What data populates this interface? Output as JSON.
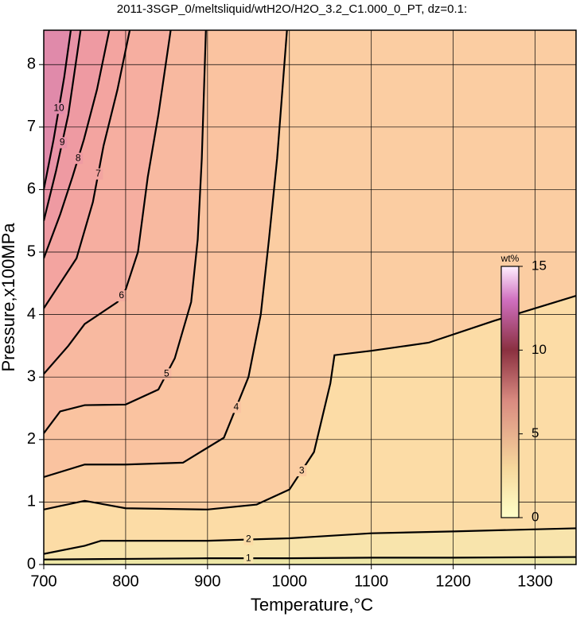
{
  "chart_data": {
    "type": "contour",
    "title": "2011-3SGP_0/meltsliquid/wtH2O/H2O_3.2_C1.000_0_PT, dz=0.1:",
    "x_label": "Temperature,°C",
    "y_label": "Pressure,x100MPa",
    "xlim": [
      700,
      1350
    ],
    "ylim": [
      0,
      8.55
    ],
    "xticks": [
      700,
      800,
      900,
      1000,
      1100,
      1200,
      1300
    ],
    "yticks": [
      0,
      1,
      2,
      3,
      4,
      5,
      6,
      7,
      8
    ],
    "grid": true,
    "background_color": "#ece6a6",
    "contours": [
      {
        "level": 1,
        "color": "#f8e4ac",
        "x": [
          700,
          800,
          900,
          1000,
          1100,
          1200,
          1350
        ],
        "y": [
          0.08,
          0.09,
          0.1,
          0.1,
          0.11,
          0.11,
          0.12
        ]
      },
      {
        "level": 2,
        "color": "#fcdca6",
        "x": [
          700,
          750,
          770,
          900,
          1000,
          1100,
          1200,
          1350
        ],
        "y": [
          0.17,
          0.3,
          0.38,
          0.38,
          0.42,
          0.5,
          0.53,
          0.58
        ]
      },
      {
        "level": 3,
        "color": "#fbcda2",
        "x": [
          700,
          750,
          800,
          900,
          960,
          1000,
          1030,
          1050,
          1055,
          1100,
          1170,
          1250,
          1350
        ],
        "y": [
          0.88,
          1.02,
          0.9,
          0.88,
          0.96,
          1.2,
          1.8,
          2.9,
          3.35,
          3.42,
          3.55,
          3.9,
          4.3
        ]
      },
      {
        "level": 4,
        "color": "#fac3a0",
        "x": [
          700,
          750,
          800,
          870,
          920,
          950,
          965,
          975,
          985,
          997
        ],
        "y": [
          1.4,
          1.6,
          1.6,
          1.63,
          2.03,
          3.0,
          4.0,
          5.2,
          6.5,
          8.55
        ]
      },
      {
        "level": 5,
        "color": "#f8b9a0",
        "x": [
          700,
          720,
          750,
          800,
          840,
          860,
          880,
          888,
          893,
          898
        ],
        "y": [
          2.1,
          2.45,
          2.55,
          2.56,
          2.8,
          3.3,
          4.2,
          5.2,
          6.5,
          8.55
        ]
      },
      {
        "level": 6,
        "color": "#f6aea0",
        "x": [
          700,
          730,
          750,
          790,
          800,
          815,
          827,
          840,
          855
        ],
        "y": [
          3.05,
          3.5,
          3.85,
          4.2,
          4.4,
          5.0,
          6.2,
          7.2,
          8.55
        ]
      },
      {
        "level": 7,
        "color": "#f3a4a0",
        "x": [
          700,
          740,
          760,
          773,
          790,
          805
        ],
        "y": [
          4.1,
          4.9,
          5.8,
          6.7,
          7.6,
          8.55
        ]
      },
      {
        "level": 8,
        "color": "#ee9aa2",
        "x": [
          700,
          720,
          735,
          749,
          765,
          780
        ],
        "y": [
          4.9,
          5.6,
          6.2,
          6.8,
          7.6,
          8.55
        ]
      },
      {
        "level": 9,
        "color": "#e892a6",
        "x": [
          700,
          715,
          730,
          745
        ],
        "y": [
          5.5,
          6.3,
          7.2,
          8.55
        ]
      },
      {
        "level": 10,
        "color": "#e08aaa",
        "x": [
          700,
          712,
          725,
          733
        ],
        "y": [
          6.0,
          6.8,
          7.8,
          8.55
        ]
      }
    ],
    "colorbar": {
      "label": "wt%",
      "lim": [
        0,
        15
      ],
      "ticks": [
        0,
        5,
        10,
        15
      ],
      "colormap": [
        {
          "value": 0,
          "color": "#ffffc8"
        },
        {
          "value": 3,
          "color": "#f6d79c"
        },
        {
          "value": 7,
          "color": "#d98a80"
        },
        {
          "value": 10,
          "color": "#8a3040"
        },
        {
          "value": 13,
          "color": "#d070c0"
        },
        {
          "value": 15,
          "color": "#fff0ff"
        }
      ]
    }
  }
}
